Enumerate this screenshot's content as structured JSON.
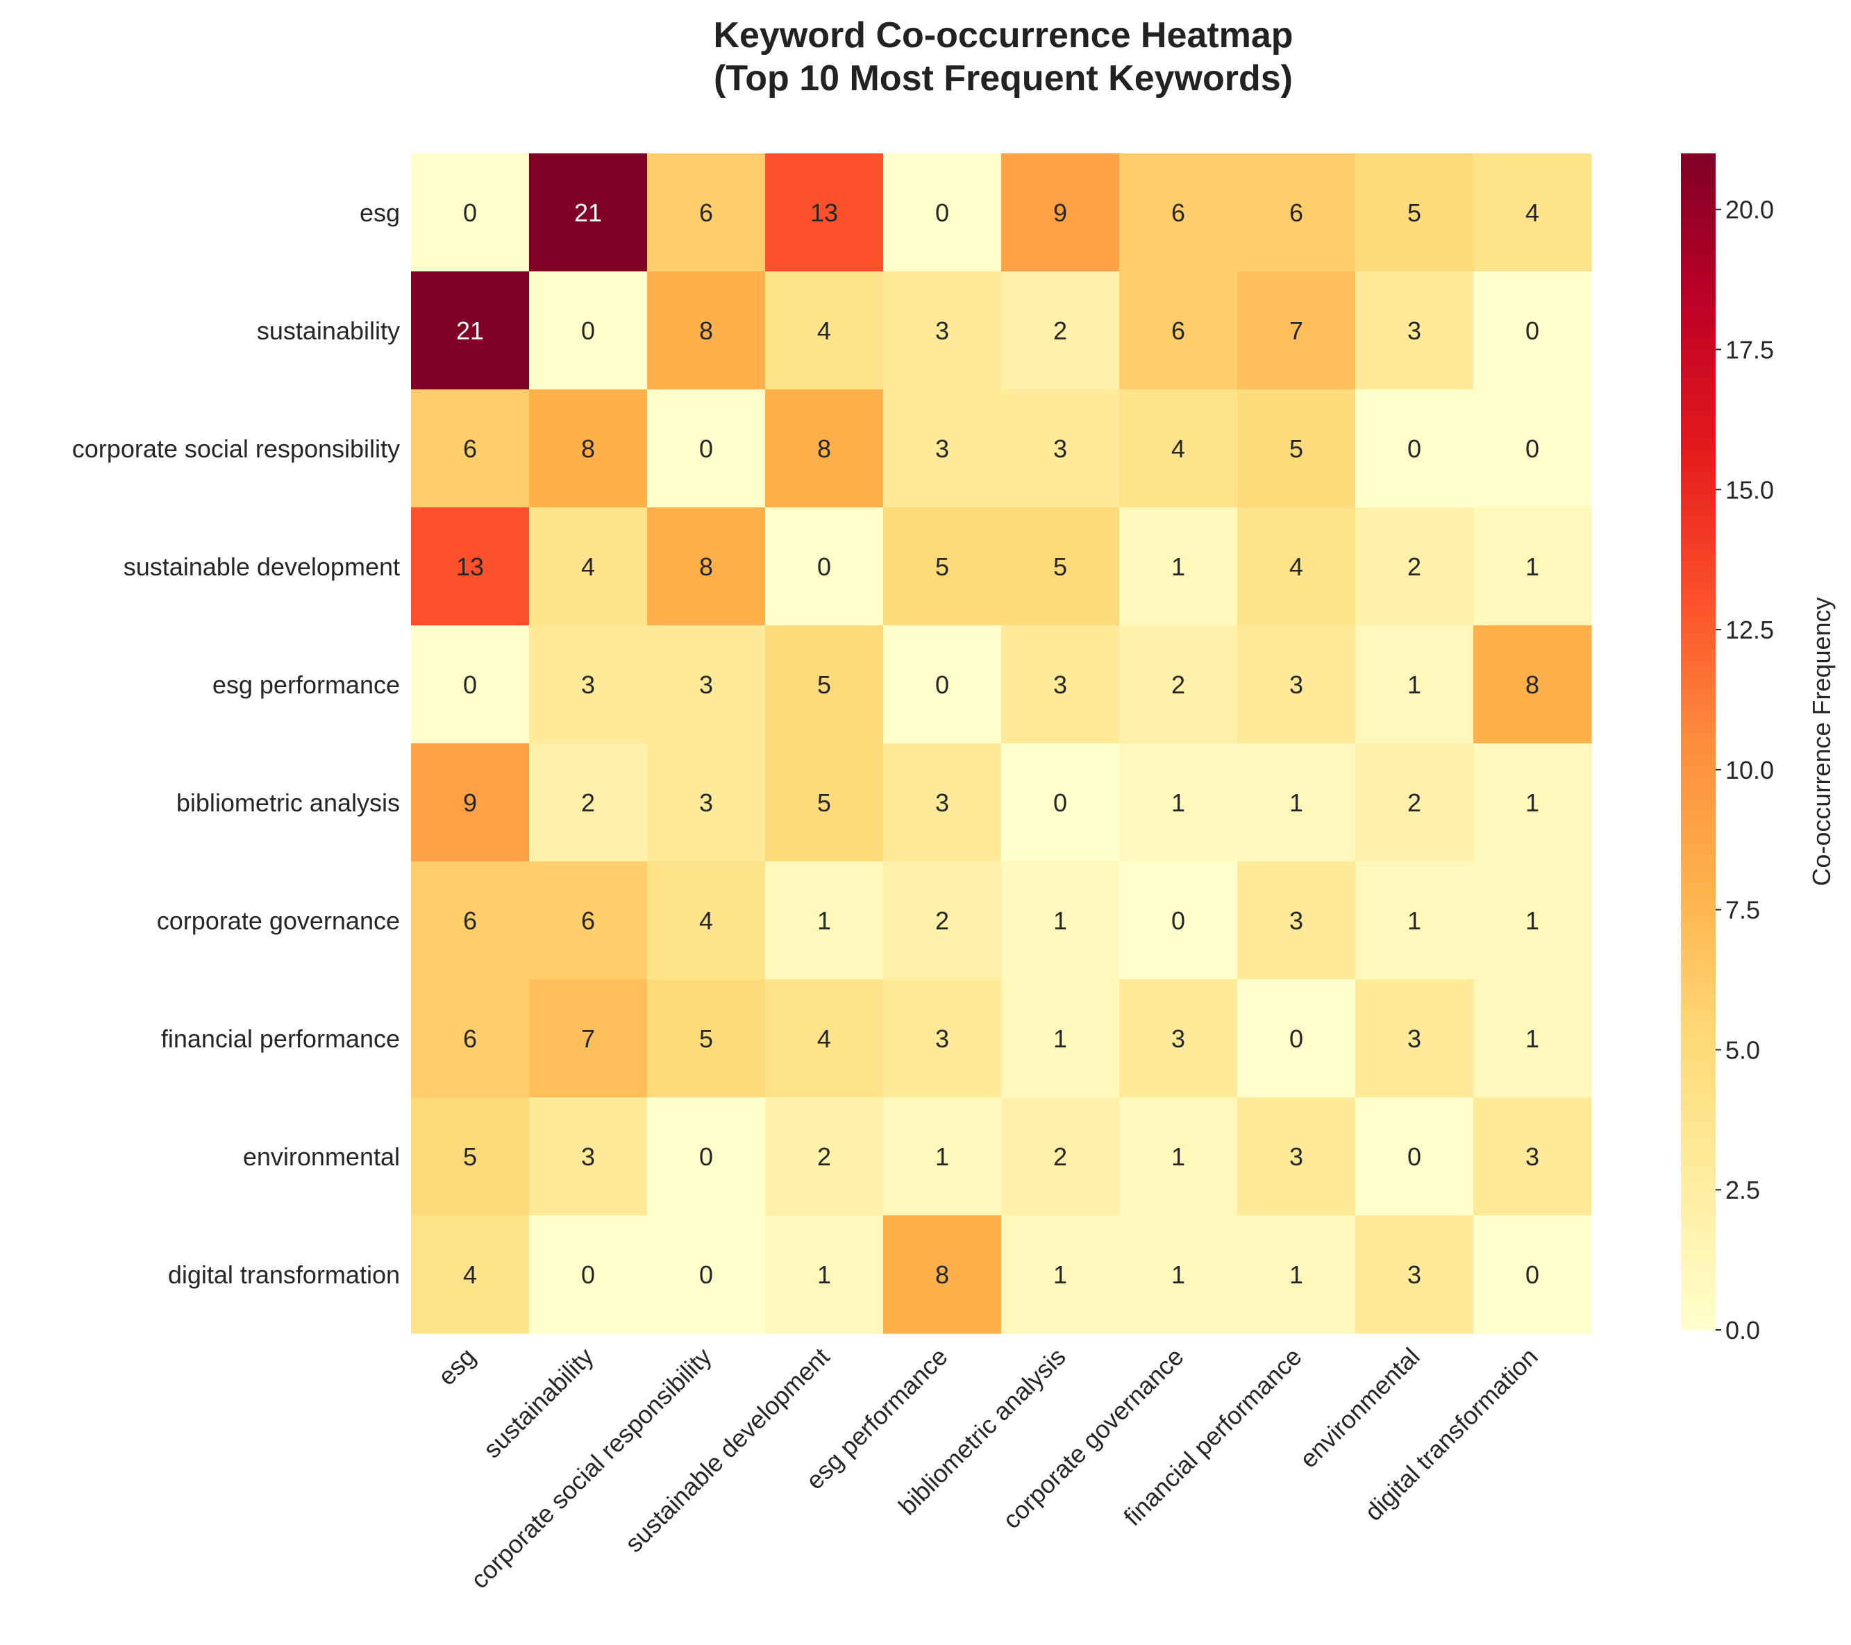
{
  "chart_data": {
    "type": "heatmap",
    "title_line1": "Keyword Co-occurrence Heatmap",
    "title_line2": "(Top 10 Most Frequent Keywords)",
    "rows": [
      "esg",
      "sustainability",
      "corporate social responsibility",
      "sustainable development",
      "esg performance",
      "bibliometric analysis",
      "corporate governance",
      "financial performance",
      "environmental",
      "digital transformation"
    ],
    "columns": [
      "esg",
      "sustainability",
      "corporate social responsibility",
      "sustainable development",
      "esg performance",
      "bibliometric analysis",
      "corporate governance",
      "financial performance",
      "environmental",
      "digital transformation"
    ],
    "values": [
      [
        0,
        21,
        6,
        13,
        0,
        9,
        6,
        6,
        5,
        4
      ],
      [
        21,
        0,
        8,
        4,
        3,
        2,
        6,
        7,
        3,
        0
      ],
      [
        6,
        8,
        0,
        8,
        3,
        3,
        4,
        5,
        0,
        0
      ],
      [
        13,
        4,
        8,
        0,
        5,
        5,
        1,
        4,
        2,
        1
      ],
      [
        0,
        3,
        3,
        5,
        0,
        3,
        2,
        3,
        1,
        8
      ],
      [
        9,
        2,
        3,
        5,
        3,
        0,
        1,
        1,
        2,
        1
      ],
      [
        6,
        6,
        4,
        1,
        2,
        1,
        0,
        3,
        1,
        1
      ],
      [
        6,
        7,
        5,
        4,
        3,
        1,
        3,
        0,
        3,
        1
      ],
      [
        5,
        3,
        0,
        2,
        1,
        2,
        1,
        3,
        0,
        3
      ],
      [
        4,
        0,
        0,
        1,
        8,
        1,
        1,
        1,
        3,
        0
      ]
    ],
    "colormap": "YlOrRd",
    "colormap_stops": [
      "#ffffcc",
      "#ffeda0",
      "#fed976",
      "#feb24c",
      "#fd8d3c",
      "#fc4e2a",
      "#e31a1c",
      "#bd0026",
      "#800026"
    ],
    "vmin": 0,
    "vmax": 21,
    "annotation_dark_color": "#262626",
    "annotation_light_color": "#ffffff",
    "colorbar": {
      "label": "Co-occurrence Frequency",
      "ticks": [
        "0.0",
        "2.5",
        "5.0",
        "7.5",
        "10.0",
        "12.5",
        "15.0",
        "17.5",
        "20.0"
      ],
      "tick_values": [
        0,
        2.5,
        5,
        7.5,
        10,
        12.5,
        15,
        17.5,
        20
      ]
    },
    "grid": false
  }
}
